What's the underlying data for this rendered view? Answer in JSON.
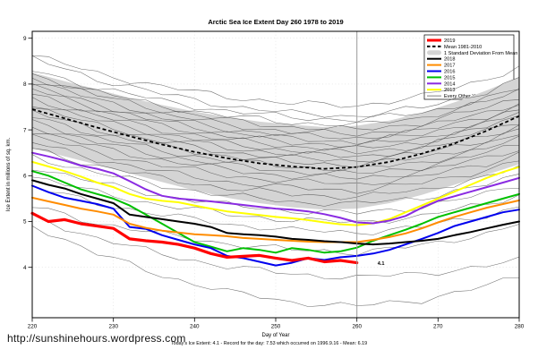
{
  "footer": {
    "url": "http://sunshinehours.wordpress.com"
  },
  "chart_data": {
    "type": "line",
    "title": "Arctic Sea Ice Extent Day 260 1978 to 2019",
    "xlabel": "Day of Year",
    "ylabel": "Ice Extent in millions of sq. km.",
    "subtitle": "Today's Ice Extent: 4.1  - Record for the day: 7.53 which occurred on 1996.9.16  - Mean: 6.19",
    "x_ticks": [
      220,
      230,
      240,
      250,
      260,
      270,
      280
    ],
    "y_ticks": [
      4,
      5,
      6,
      7,
      8,
      9
    ],
    "xlim": [
      220,
      280
    ],
    "ylim": [
      2.9,
      9.15
    ],
    "grid": true,
    "legend_position": "top-right",
    "marker_day": 260,
    "annotation": {
      "text": "4.1",
      "day": 260,
      "value": 4.1,
      "color": "#ff0000"
    },
    "colors": {
      "band": "#d4d4d4",
      "mean": "#000000",
      "other": "#4b4b4b",
      "marker_line": "#9a9a9a",
      "frame": "#000000"
    },
    "band": {
      "label": "1 Standard Deviation From Mean",
      "days": [
        220,
        224,
        228,
        232,
        236,
        240,
        244,
        248,
        252,
        256,
        260,
        264,
        268,
        272,
        276,
        280
      ],
      "upper": [
        8.25,
        8.06,
        7.88,
        7.7,
        7.54,
        7.4,
        7.28,
        7.18,
        7.11,
        7.06,
        7.09,
        7.2,
        7.37,
        7.6,
        7.86,
        8.15
      ],
      "lower": [
        6.6,
        6.42,
        6.24,
        6.05,
        5.86,
        5.68,
        5.52,
        5.4,
        5.31,
        5.26,
        5.28,
        5.4,
        5.58,
        5.8,
        6.02,
        6.25
      ]
    },
    "mean": {
      "label": "Mean 1981-2010",
      "days": [
        220,
        224,
        228,
        232,
        236,
        240,
        244,
        248,
        252,
        256,
        260,
        264,
        268,
        272,
        276,
        280
      ],
      "values": [
        7.45,
        7.25,
        7.05,
        6.86,
        6.68,
        6.52,
        6.38,
        6.27,
        6.2,
        6.15,
        6.19,
        6.3,
        6.48,
        6.7,
        6.98,
        7.3
      ]
    },
    "series": [
      {
        "name": "2019",
        "color": "#ff0000",
        "width": 3.2,
        "day_start": 220,
        "day_step": 2,
        "values": [
          5.18,
          5.0,
          5.04,
          4.95,
          4.9,
          4.85,
          4.62,
          4.58,
          4.55,
          4.5,
          4.42,
          4.3,
          4.22,
          4.24,
          4.26,
          4.2,
          4.15,
          4.2,
          4.12,
          4.15,
          4.1
        ]
      },
      {
        "name": "2018",
        "color": "#000000",
        "width": 2,
        "day_start": 220,
        "day_step": 2,
        "values": [
          5.9,
          5.8,
          5.72,
          5.6,
          5.5,
          5.4,
          5.15,
          5.1,
          5.05,
          5.0,
          4.95,
          4.88,
          4.75,
          4.72,
          4.7,
          4.67,
          4.62,
          4.6,
          4.57,
          4.55,
          4.52,
          4.5,
          4.52,
          4.55,
          4.58,
          4.62,
          4.7,
          4.77,
          4.85,
          4.93,
          5.0
        ]
      },
      {
        "name": "2017",
        "color": "#ff8c00",
        "width": 2,
        "day_start": 220,
        "day_step": 2,
        "values": [
          5.52,
          5.44,
          5.36,
          5.28,
          5.22,
          5.15,
          4.95,
          4.86,
          4.8,
          4.76,
          4.72,
          4.7,
          4.68,
          4.64,
          4.62,
          4.6,
          4.58,
          4.56,
          4.55,
          4.55,
          4.55,
          4.6,
          4.66,
          4.74,
          4.85,
          4.98,
          5.1,
          5.2,
          5.3,
          5.38,
          5.46
        ]
      },
      {
        "name": "2016",
        "color": "#0000ee",
        "width": 2,
        "day_start": 220,
        "day_step": 2,
        "values": [
          5.78,
          5.64,
          5.52,
          5.45,
          5.38,
          5.28,
          4.88,
          4.84,
          4.7,
          4.6,
          4.5,
          4.42,
          4.25,
          4.2,
          4.12,
          4.04,
          4.1,
          4.2,
          4.16,
          4.22,
          4.25,
          4.3,
          4.38,
          4.5,
          4.62,
          4.75,
          4.9,
          5.0,
          5.1,
          5.2,
          5.26
        ]
      },
      {
        "name": "2015",
        "color": "#00c000",
        "width": 2,
        "day_start": 220,
        "day_step": 2,
        "values": [
          6.1,
          6.0,
          5.85,
          5.7,
          5.6,
          5.5,
          5.35,
          5.15,
          4.95,
          4.75,
          4.55,
          4.45,
          4.35,
          4.42,
          4.38,
          4.32,
          4.42,
          4.38,
          4.32,
          4.35,
          4.43,
          4.58,
          4.7,
          4.82,
          4.95,
          5.1,
          5.2,
          5.3,
          5.4,
          5.5,
          5.6
        ]
      },
      {
        "name": "2014",
        "color": "#8a2be2",
        "width": 2,
        "day_start": 220,
        "day_step": 2,
        "values": [
          6.5,
          6.42,
          6.33,
          6.22,
          6.15,
          6.05,
          5.88,
          5.7,
          5.56,
          5.5,
          5.47,
          5.44,
          5.4,
          5.36,
          5.32,
          5.28,
          5.26,
          5.22,
          5.16,
          5.08,
          4.98,
          4.96,
          5.02,
          5.12,
          5.3,
          5.45,
          5.55,
          5.65,
          5.75,
          5.85,
          5.95
        ]
      },
      {
        "name": "2013",
        "color": "#ffff00",
        "width": 2,
        "day_start": 220,
        "day_step": 2,
        "values": [
          6.3,
          6.2,
          6.1,
          5.98,
          5.85,
          5.75,
          5.6,
          5.5,
          5.45,
          5.42,
          5.35,
          5.28,
          5.22,
          5.18,
          5.14,
          5.1,
          5.07,
          5.03,
          4.98,
          4.94,
          4.92,
          4.96,
          5.05,
          5.2,
          5.35,
          5.5,
          5.65,
          5.8,
          5.95,
          6.08,
          6.19
        ]
      }
    ],
    "other_years": {
      "label": "Every Other Year",
      "days": [
        220,
        228,
        236,
        244,
        252,
        260,
        268,
        276,
        280
      ],
      "lines": [
        [
          8.62,
          8.24,
          7.94,
          7.73,
          7.57,
          7.53,
          7.72,
          8.11,
          8.38
        ],
        [
          8.55,
          8.11,
          7.78,
          7.53,
          7.36,
          7.3,
          7.48,
          7.84,
          8.1
        ],
        [
          8.3,
          7.92,
          7.63,
          7.41,
          7.27,
          7.22,
          7.37,
          7.68,
          7.9
        ],
        [
          8.2,
          7.82,
          7.52,
          7.3,
          7.16,
          7.1,
          7.27,
          7.61,
          7.85
        ],
        [
          8.15,
          7.75,
          7.44,
          7.21,
          7.06,
          7.0,
          7.15,
          7.48,
          7.7
        ],
        [
          8.05,
          7.65,
          7.34,
          7.11,
          6.96,
          6.9,
          7.05,
          7.38,
          7.6
        ],
        [
          7.95,
          7.55,
          7.25,
          7.02,
          6.88,
          6.82,
          6.97,
          7.3,
          7.52
        ],
        [
          7.88,
          7.48,
          7.17,
          6.95,
          6.8,
          6.74,
          6.89,
          7.22,
          7.44
        ],
        [
          7.78,
          7.39,
          7.09,
          6.86,
          6.72,
          6.66,
          6.81,
          7.14,
          7.36
        ],
        [
          7.68,
          7.3,
          7.0,
          6.78,
          6.64,
          6.58,
          6.73,
          7.06,
          7.28
        ],
        [
          7.58,
          7.2,
          6.91,
          6.69,
          6.55,
          6.5,
          6.65,
          6.98,
          7.2
        ],
        [
          7.48,
          7.11,
          6.82,
          6.61,
          6.47,
          6.42,
          6.57,
          6.88,
          7.1
        ],
        [
          7.38,
          7.01,
          6.73,
          6.52,
          6.38,
          6.33,
          6.48,
          6.79,
          7.0
        ],
        [
          7.28,
          6.92,
          6.64,
          6.43,
          6.29,
          6.24,
          6.39,
          6.69,
          6.9
        ],
        [
          7.18,
          6.82,
          6.54,
          6.33,
          6.19,
          6.14,
          6.29,
          6.59,
          6.8
        ],
        [
          7.08,
          6.72,
          6.44,
          6.23,
          6.09,
          6.04,
          6.19,
          6.49,
          6.7
        ],
        [
          6.98,
          6.62,
          6.34,
          6.13,
          5.99,
          5.94,
          6.09,
          6.39,
          6.6
        ],
        [
          6.86,
          6.5,
          6.22,
          6.01,
          5.87,
          5.82,
          5.97,
          6.27,
          6.48
        ],
        [
          6.72,
          6.36,
          6.08,
          5.87,
          5.73,
          5.68,
          5.83,
          6.13,
          6.34
        ],
        [
          6.58,
          6.22,
          5.94,
          5.73,
          5.59,
          5.54,
          5.68,
          5.98,
          6.18
        ],
        [
          6.42,
          6.06,
          5.78,
          5.57,
          5.43,
          5.38,
          5.52,
          5.8,
          6.0
        ],
        [
          6.2,
          5.84,
          5.57,
          5.36,
          5.23,
          5.18,
          5.32,
          5.6,
          5.8
        ],
        [
          5.98,
          5.63,
          5.36,
          5.16,
          5.03,
          4.98,
          5.11,
          5.39,
          5.58
        ],
        [
          5.75,
          5.4,
          5.14,
          4.95,
          4.81,
          4.76,
          4.88,
          5.14,
          5.32
        ],
        [
          5.32,
          4.97,
          4.72,
          4.52,
          4.38,
          4.33,
          4.47,
          4.74,
          4.95
        ],
        [
          5.1,
          4.64,
          4.28,
          4.02,
          3.85,
          3.78,
          3.86,
          4.03,
          4.15
        ],
        [
          4.92,
          4.3,
          3.82,
          3.47,
          3.24,
          3.15,
          3.29,
          3.59,
          3.8
        ]
      ]
    }
  },
  "legend": {
    "entries": [
      {
        "label": "2019",
        "color": "#ff0000",
        "width": 3,
        "swatch": "line"
      },
      {
        "label": "Mean 1981-2010",
        "color": "#000000",
        "width": 2,
        "swatch": "line",
        "dash": "3.5 2.5"
      },
      {
        "label": "1 Standard Deviation From Mean",
        "color": "#d4d4d4",
        "swatch": "band"
      },
      {
        "label": "2018",
        "color": "#000000",
        "width": 2,
        "swatch": "line"
      },
      {
        "label": "2017",
        "color": "#ff8c00",
        "width": 2,
        "swatch": "line"
      },
      {
        "label": "2016",
        "color": "#0000ee",
        "width": 2,
        "swatch": "line"
      },
      {
        "label": "2015",
        "color": "#00c000",
        "width": 2,
        "swatch": "line"
      },
      {
        "label": "2014",
        "color": "#8a2be2",
        "width": 2,
        "swatch": "line"
      },
      {
        "label": "2013",
        "color": "#ffff00",
        "width": 2,
        "swatch": "line"
      },
      {
        "label": "Every Other Year",
        "color": "#4b4b4b",
        "width": 0.7,
        "swatch": "line"
      }
    ]
  }
}
